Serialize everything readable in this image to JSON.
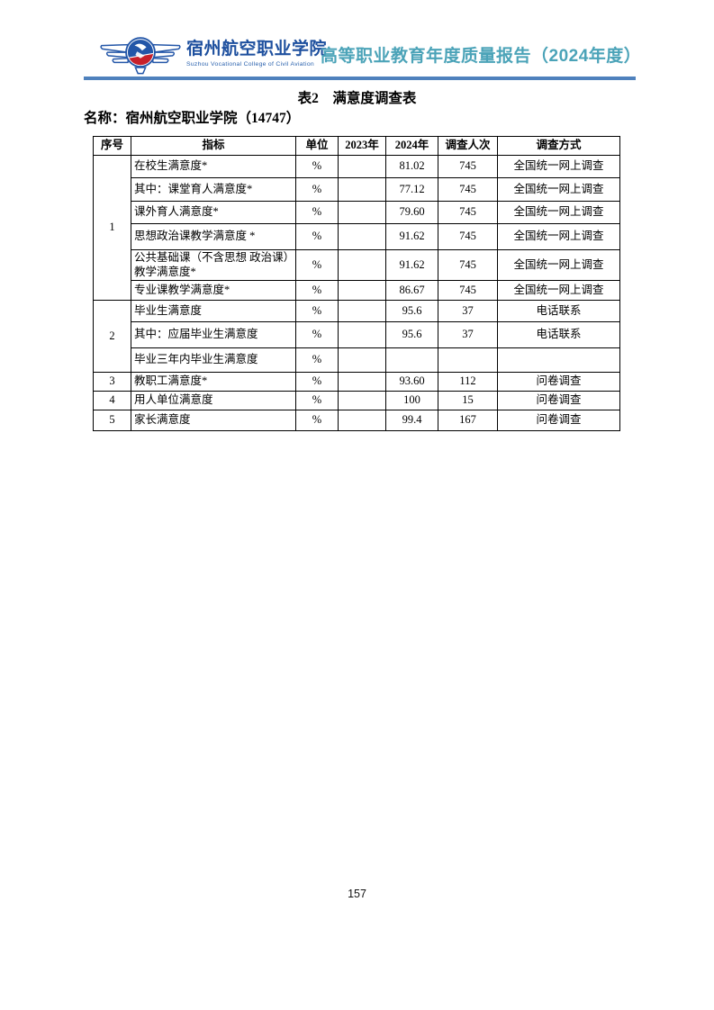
{
  "header": {
    "college_name_zh": "宿州航空职业学院",
    "college_name_en": "Suzhou Vocational College of Civil Aviation",
    "report_title": "高等职业教育年度质量报告（2024年度）"
  },
  "colors": {
    "college_blue": "#1d4f9e",
    "report_teal": "#4ba3b8",
    "rule_blue": "#4f81bd",
    "emblem_blue": "#2356a8",
    "emblem_red": "#c8202a"
  },
  "doc": {
    "table_caption": "表2　满意度调查表",
    "name_line": "名称：宿州航空职业学院（14747）"
  },
  "table": {
    "headers": [
      "序号",
      "指标",
      "单位",
      "2023年",
      "2024年",
      "调查人次",
      "调查方式"
    ],
    "rows": [
      {
        "seq": "1",
        "seq_span": 6,
        "indicator": "在校生满意度*",
        "unit": "%",
        "y2023": "",
        "y2024": "81.02",
        "count": "745",
        "method": "全国统一网上调查"
      },
      {
        "indicator": "其中：课堂育人满意度*",
        "unit": "%",
        "y2023": "",
        "y2024": "77.12",
        "count": "745",
        "method": "全国统一网上调查"
      },
      {
        "indicator": "课外育人满意度*",
        "unit": "%",
        "y2023": "",
        "y2024": "79.60",
        "count": "745",
        "method": "全国统一网上调查"
      },
      {
        "indicator": "思想政治课教学满意度 *",
        "unit": "%",
        "y2023": "",
        "y2024": "91.62",
        "count": "745",
        "method": "全国统一网上调查"
      },
      {
        "indicator": "公共基础课（不含思想 政治课）教学满意度*",
        "unit": "%",
        "y2023": "",
        "y2024": "91.62",
        "count": "745",
        "method": "全国统一网上调查"
      },
      {
        "indicator": "专业课教学满意度*",
        "unit": "%",
        "y2023": "",
        "y2024": "86.67",
        "count": "745",
        "method": "全国统一网上调查"
      },
      {
        "seq": "2",
        "seq_span": 3,
        "seq_low": true,
        "indicator": "毕业生满意度",
        "unit": "%",
        "y2023": "",
        "y2024": "95.6",
        "count": "37",
        "method": "电话联系"
      },
      {
        "indicator": "其中：应届毕业生满意度",
        "unit": "%",
        "y2023": "",
        "y2024": "95.6",
        "count": "37",
        "method": "电话联系"
      },
      {
        "indicator": "毕业三年内毕业生满意度",
        "unit": "%",
        "y2023": "",
        "y2024": "",
        "count": "",
        "method": ""
      },
      {
        "seq": "3",
        "seq_span": 1,
        "indicator": "教职工满意度*",
        "unit": "%",
        "y2023": "",
        "y2024": "93.60",
        "count": "112",
        "method": "问卷调查"
      },
      {
        "seq": "4",
        "seq_span": 1,
        "indicator": "用人单位满意度",
        "unit": "%",
        "y2023": "",
        "y2024": "100",
        "count": "15",
        "method": "问卷调查"
      },
      {
        "seq": "5",
        "seq_span": 1,
        "indicator": "家长满意度",
        "unit": "%",
        "y2023": "",
        "y2024": "99.4",
        "count": "167",
        "method": "问卷调查"
      }
    ]
  },
  "footer": {
    "page_number": "157"
  }
}
